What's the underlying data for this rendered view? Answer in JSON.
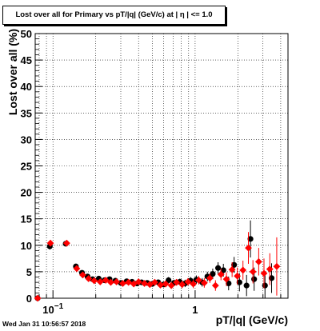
{
  "chart_data": {
    "type": "scatter",
    "title": "Lost over all for Primary vs pT/|q| (GeV/c) at |  η | <= 1.0",
    "xlabel": "pT/|q| (GeV/c)",
    "ylabel": "Lost over all (%)",
    "xscale": "log",
    "xlim": [
      0.075,
      4.5
    ],
    "ylim": [
      0,
      50
    ],
    "y_ticks": [
      0,
      5,
      10,
      15,
      20,
      25,
      30,
      35,
      40,
      45,
      50
    ],
    "x_tick_labels": [
      {
        "value": 0.1,
        "label": "10",
        "exponent": "−1"
      },
      {
        "value": 1,
        "label": "1",
        "exponent": ""
      }
    ],
    "grid": true,
    "series": [
      {
        "color": "#000000",
        "marker": "circle",
        "points": [
          {
            "x": 0.078,
            "y": 0.0,
            "err": 0.0
          },
          {
            "x": 0.095,
            "y": 9.8,
            "err": 0.6
          },
          {
            "x": 0.123,
            "y": 10.3,
            "err": 0.5
          },
          {
            "x": 0.145,
            "y": 6.0,
            "err": 0.5
          },
          {
            "x": 0.16,
            "y": 4.8,
            "err": 0.4
          },
          {
            "x": 0.175,
            "y": 4.1,
            "err": 0.4
          },
          {
            "x": 0.19,
            "y": 3.6,
            "err": 0.4
          },
          {
            "x": 0.21,
            "y": 3.7,
            "err": 0.4
          },
          {
            "x": 0.23,
            "y": 3.4,
            "err": 0.4
          },
          {
            "x": 0.25,
            "y": 3.6,
            "err": 0.4
          },
          {
            "x": 0.275,
            "y": 3.3,
            "err": 0.4
          },
          {
            "x": 0.3,
            "y": 2.9,
            "err": 0.4
          },
          {
            "x": 0.33,
            "y": 3.2,
            "err": 0.4
          },
          {
            "x": 0.36,
            "y": 3.1,
            "err": 0.4
          },
          {
            "x": 0.39,
            "y": 2.8,
            "err": 0.4
          },
          {
            "x": 0.42,
            "y": 3.0,
            "err": 0.5
          },
          {
            "x": 0.46,
            "y": 2.9,
            "err": 0.5
          },
          {
            "x": 0.5,
            "y": 2.7,
            "err": 0.5
          },
          {
            "x": 0.55,
            "y": 3.0,
            "err": 0.5
          },
          {
            "x": 0.6,
            "y": 2.6,
            "err": 0.5
          },
          {
            "x": 0.65,
            "y": 3.4,
            "err": 0.6
          },
          {
            "x": 0.71,
            "y": 2.9,
            "err": 0.6
          },
          {
            "x": 0.78,
            "y": 3.1,
            "err": 0.6
          },
          {
            "x": 0.85,
            "y": 2.8,
            "err": 0.7
          },
          {
            "x": 0.93,
            "y": 3.3,
            "err": 0.7
          },
          {
            "x": 1.02,
            "y": 3.5,
            "err": 0.8
          },
          {
            "x": 1.12,
            "y": 3.0,
            "err": 0.8
          },
          {
            "x": 1.22,
            "y": 4.1,
            "err": 0.9
          },
          {
            "x": 1.33,
            "y": 4.6,
            "err": 1.0
          },
          {
            "x": 1.45,
            "y": 5.7,
            "err": 1.1
          },
          {
            "x": 1.58,
            "y": 5.3,
            "err": 1.2
          },
          {
            "x": 1.72,
            "y": 2.8,
            "err": 1.3
          },
          {
            "x": 1.88,
            "y": 6.3,
            "err": 1.5
          },
          {
            "x": 2.05,
            "y": 3.0,
            "err": 1.7
          },
          {
            "x": 2.3,
            "y": 2.4,
            "err": 2.0
          },
          {
            "x": 2.45,
            "y": 11.2,
            "err": 3.5
          },
          {
            "x": 2.6,
            "y": 3.6,
            "err": 2.2
          },
          {
            "x": 3.1,
            "y": 2.4,
            "err": 2.6
          },
          {
            "x": 3.45,
            "y": 3.8,
            "err": 2.8
          }
        ]
      },
      {
        "color": "#ff0000",
        "marker": "diamond",
        "points": [
          {
            "x": 0.078,
            "y": 0.0,
            "err": 0.0
          },
          {
            "x": 0.096,
            "y": 10.4,
            "err": 0.6
          },
          {
            "x": 0.125,
            "y": 10.4,
            "err": 0.5
          },
          {
            "x": 0.147,
            "y": 5.6,
            "err": 0.5
          },
          {
            "x": 0.162,
            "y": 4.4,
            "err": 0.4
          },
          {
            "x": 0.178,
            "y": 3.7,
            "err": 0.4
          },
          {
            "x": 0.195,
            "y": 3.3,
            "err": 0.4
          },
          {
            "x": 0.215,
            "y": 3.1,
            "err": 0.4
          },
          {
            "x": 0.235,
            "y": 3.4,
            "err": 0.4
          },
          {
            "x": 0.255,
            "y": 3.0,
            "err": 0.4
          },
          {
            "x": 0.28,
            "y": 3.1,
            "err": 0.4
          },
          {
            "x": 0.31,
            "y": 2.8,
            "err": 0.4
          },
          {
            "x": 0.34,
            "y": 3.0,
            "err": 0.4
          },
          {
            "x": 0.37,
            "y": 2.7,
            "err": 0.4
          },
          {
            "x": 0.4,
            "y": 3.1,
            "err": 0.5
          },
          {
            "x": 0.44,
            "y": 2.8,
            "err": 0.5
          },
          {
            "x": 0.48,
            "y": 2.6,
            "err": 0.5
          },
          {
            "x": 0.52,
            "y": 3.0,
            "err": 0.5
          },
          {
            "x": 0.57,
            "y": 2.5,
            "err": 0.5
          },
          {
            "x": 0.62,
            "y": 2.7,
            "err": 0.6
          },
          {
            "x": 0.68,
            "y": 2.4,
            "err": 0.6
          },
          {
            "x": 0.74,
            "y": 3.0,
            "err": 0.6
          },
          {
            "x": 0.81,
            "y": 2.6,
            "err": 0.7
          },
          {
            "x": 0.89,
            "y": 3.1,
            "err": 0.7
          },
          {
            "x": 0.97,
            "y": 2.7,
            "err": 0.8
          },
          {
            "x": 1.06,
            "y": 3.4,
            "err": 0.8
          },
          {
            "x": 1.16,
            "y": 2.9,
            "err": 0.9
          },
          {
            "x": 1.27,
            "y": 3.8,
            "err": 0.9
          },
          {
            "x": 1.39,
            "y": 2.4,
            "err": 1.0
          },
          {
            "x": 1.52,
            "y": 4.5,
            "err": 1.1
          },
          {
            "x": 1.66,
            "y": 3.6,
            "err": 1.3
          },
          {
            "x": 1.82,
            "y": 5.4,
            "err": 1.4
          },
          {
            "x": 1.98,
            "y": 4.2,
            "err": 1.6
          },
          {
            "x": 2.17,
            "y": 5.3,
            "err": 1.8
          },
          {
            "x": 2.37,
            "y": 9.5,
            "err": 3.0
          },
          {
            "x": 2.55,
            "y": 5.0,
            "err": 2.2
          },
          {
            "x": 2.8,
            "y": 6.9,
            "err": 2.6
          },
          {
            "x": 3.05,
            "y": 4.7,
            "err": 2.8
          },
          {
            "x": 3.35,
            "y": 5.5,
            "err": 3.0
          },
          {
            "x": 3.75,
            "y": 6.0,
            "err": 5.5
          }
        ]
      }
    ]
  },
  "footer": {
    "timestamp": "Wed Jan 31 10:56:57 2018"
  }
}
